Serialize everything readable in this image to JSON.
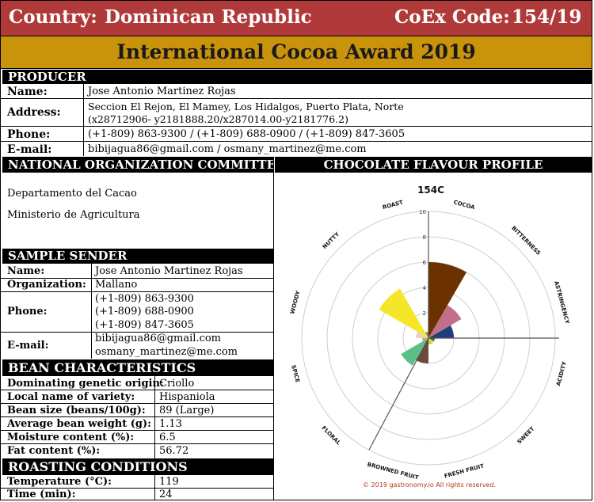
{
  "header": {
    "country_label": "Country:",
    "country": "Dominican Republic",
    "code_label": "CoEx Code:",
    "code": "154/19"
  },
  "award_title": "International Cocoa Award 2019",
  "producer": {
    "section": "PRODUCER",
    "name_label": "Name:",
    "name": "Jose Antonio Martinez Rojas",
    "address_label": "Address:",
    "address_line1": "Seccion El Rejon, El Mamey, Los Hidalgos, Puerto Plata, Norte",
    "address_line2": "(x28712906- y2181888.20/x287014.00-y2181776.2)",
    "phone_label": "Phone:",
    "phone": "(+1-809) 863-9300 / (+1-809) 688-0900 / (+1-809) 847-3605",
    "email_label": "E-mail:",
    "email": "bibijagua86@gmail.com / osmany_martinez@me.com"
  },
  "noc": {
    "section": "NATIONAL ORGANIZATION COMMITTEE",
    "line1": "Departamento del Cacao",
    "line2": "Ministerio de Agricultura"
  },
  "sender": {
    "section": "SAMPLE SENDER",
    "name_label": "Name:",
    "name": "Jose Antonio Martinez Rojas",
    "org_label": "Organization:",
    "org": "Mallano",
    "phone_label": "Phone:",
    "phones": [
      "(+1-809) 863-9300",
      "(+1-809) 688-0900",
      "(+1-809) 847-3605"
    ],
    "email_label": "E-mail:",
    "emails": [
      "bibijagua86@gmail.com",
      "osmany_martinez@me.com"
    ]
  },
  "bean": {
    "section": "BEAN CHARACTERISTICS",
    "rows": [
      {
        "label": "Dominating genetic origin:",
        "value": "Criollo"
      },
      {
        "label": "Local name of variety:",
        "value": "Hispaniola"
      },
      {
        "label": "Bean size (beans/100g):",
        "value": "89 (Large)"
      },
      {
        "label": "Average bean weight (g):",
        "value": "1.13"
      },
      {
        "label": "Moisture content (%):",
        "value": "6.5"
      },
      {
        "label": "Fat content (%):",
        "value": "56.72"
      }
    ]
  },
  "roasting": {
    "section": "ROASTING CONDITIONS",
    "rows": [
      {
        "label": "Temperature (°C):",
        "value": "119"
      },
      {
        "label": "Time (min):",
        "value": "24"
      }
    ]
  },
  "flavour": {
    "section": "CHOCOLATE FLAVOUR PROFILE",
    "copyright": "© 2019 gastronomy.io All rights reserved."
  },
  "chart_data": {
    "type": "polar-bar",
    "title": "154C",
    "rlim": [
      0,
      10
    ],
    "r_ticks": [
      "2",
      "4",
      "6",
      "8",
      "10"
    ],
    "categories": [
      "COCOA",
      "BITTERNESS",
      "ASTRINGENCY",
      "ACIDITY",
      "SWEET",
      "FRESH FRUIT",
      "BROWNED FRUIT",
      "FLORAL",
      "SPICE",
      "WOODY",
      "NUTTY",
      "ROAST"
    ],
    "values": [
      6,
      3,
      2,
      0.5,
      0.5,
      0.5,
      2,
      2.5,
      0.5,
      1,
      4.5,
      0.5
    ],
    "colors": [
      "#6b3200",
      "#c2708a",
      "#1f3d7a",
      "#2d6e2d",
      "#e8e020",
      "#b4d24a",
      "#6e4a3a",
      "#5cbf8a",
      "#c9a27a",
      "#e6d4c0",
      "#f5e62a",
      "#888888"
    ]
  }
}
